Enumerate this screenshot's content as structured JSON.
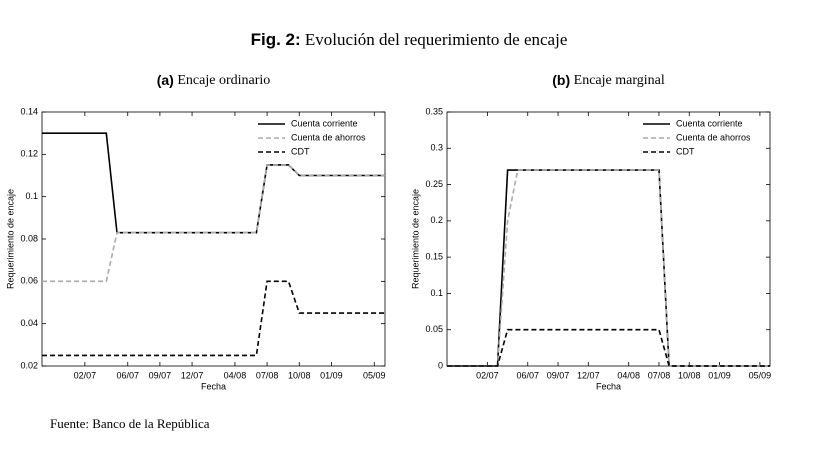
{
  "figure_label": "Fig. 2:",
  "figure_title": "Evolución del requerimiento de encaje",
  "source": "Fuente: Banco de la República",
  "chart_data": [
    {
      "type": "line",
      "panel_label": "(a)",
      "title": "Encaje ordinario",
      "x_label": "Fecha",
      "y_label": "Requerimiento de encaje",
      "x": [
        "10/06",
        "04/07",
        "05/07",
        "06/08",
        "07/08",
        "09/08",
        "10/08",
        "06/09"
      ],
      "series": [
        {
          "name": "Cuenta corriente",
          "color": "#000000",
          "linestyle": "solid",
          "values": [
            0.13,
            0.13,
            0.083,
            0.083,
            0.115,
            0.115,
            0.11,
            0.11
          ]
        },
        {
          "name": "Cuenta de ahorros",
          "color": "#aaaaaa",
          "linestyle": "dashed",
          "values": [
            0.06,
            0.06,
            0.083,
            0.083,
            0.115,
            0.115,
            0.11,
            0.11
          ]
        },
        {
          "name": "CDT",
          "color": "#000000",
          "linestyle": "dashed",
          "values": [
            0.025,
            0.025,
            0.025,
            0.025,
            0.06,
            0.06,
            0.045,
            0.045
          ]
        }
      ],
      "xlim": [
        "10/06",
        "06/09"
      ],
      "xticks": [
        "02/07",
        "06/07",
        "09/07",
        "12/07",
        "04/08",
        "07/08",
        "10/08",
        "01/09",
        "05/09"
      ],
      "ylim": [
        0.02,
        0.14
      ],
      "yticks": [
        0.02,
        0.04,
        0.06,
        0.08,
        0.1,
        0.12,
        0.14
      ],
      "legend": "upper right"
    },
    {
      "type": "line",
      "panel_label": "(b)",
      "title": "Encaje marginal",
      "x_label": "Fecha",
      "y_label": "Requerimiento de encaje",
      "x": [
        "10/06",
        "03/07",
        "04/07",
        "05/07",
        "07/08",
        "08/08",
        "06/09"
      ],
      "series": [
        {
          "name": "Cuenta corriente",
          "color": "#000000",
          "linestyle": "solid",
          "values": [
            0,
            0,
            0.27,
            0.27,
            0.27,
            0,
            0
          ]
        },
        {
          "name": "Cuenta de ahorros",
          "color": "#aaaaaa",
          "linestyle": "dashed",
          "values": [
            0,
            0,
            0.2,
            0.27,
            0.27,
            0,
            0
          ]
        },
        {
          "name": "CDT",
          "color": "#000000",
          "linestyle": "dashed",
          "values": [
            0,
            0,
            0.05,
            0.05,
            0.05,
            0,
            0
          ]
        }
      ],
      "xlim": [
        "10/06",
        "06/09"
      ],
      "xticks": [
        "02/07",
        "06/07",
        "09/07",
        "12/07",
        "04/08",
        "07/08",
        "10/08",
        "01/09",
        "05/09"
      ],
      "ylim": [
        0,
        0.35
      ],
      "yticks": [
        0,
        0.05,
        0.1,
        0.15,
        0.2,
        0.25,
        0.3,
        0.35
      ],
      "legend": "upper right"
    }
  ]
}
